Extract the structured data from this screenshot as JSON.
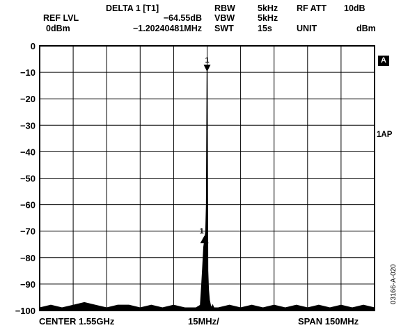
{
  "header": {
    "delta_label": "DELTA 1 [T1]",
    "delta_level": "−64.55dB",
    "delta_freq": "−1.20240481MHz",
    "ref_lvl_label": "REF LVL",
    "ref_lvl_value": "0dBm",
    "rbw_label": "RBW",
    "rbw_value": "5kHz",
    "vbw_label": "VBW",
    "vbw_value": "5kHz",
    "swt_label": "SWT",
    "swt_value": "15s",
    "rf_att_label": "RF ATT",
    "rf_att_value": "10dB",
    "unit_label": "UNIT",
    "unit_value": "dBm"
  },
  "side": {
    "trace_tag": "A",
    "detector": "1AP",
    "figure_id": "03166-A-020"
  },
  "footer": {
    "center": "CENTER 1.55GHz",
    "div": "15MHz/",
    "span": "SPAN 150MHz"
  },
  "markers": [
    {
      "label": "1",
      "x": 1550.0,
      "y": -10,
      "symbol": "down-triangle"
    },
    {
      "label": "1",
      "x": 1548.8,
      "y": -73,
      "symbol": "up-triangle"
    }
  ],
  "chart_data": {
    "type": "line",
    "title": "",
    "xlabel": "",
    "ylabel": "",
    "x_unit": "MHz",
    "y_unit": "dBm",
    "xlim": [
      1475,
      1625
    ],
    "ylim": [
      -100,
      0
    ],
    "yticks": [
      0,
      -10,
      -20,
      -30,
      -40,
      -50,
      -60,
      -70,
      -80,
      -90,
      -100
    ],
    "grid": true,
    "series": [
      {
        "x": [
          1475,
          1480,
          1485,
          1490,
          1495,
          1500,
          1505,
          1510,
          1515,
          1520,
          1525,
          1530,
          1535,
          1540,
          1545,
          1547.0,
          1547.6,
          1548.0,
          1548.5,
          1549.0,
          1549.4,
          1549.7,
          1550.0,
          1550.3,
          1550.6,
          1551.0,
          1551.5,
          1552.0,
          1552.5,
          1553.0,
          1555,
          1560,
          1565,
          1570,
          1575,
          1580,
          1585,
          1590,
          1595,
          1600,
          1605,
          1610,
          1615,
          1620,
          1625
        ],
        "values": [
          -99,
          -98,
          -99,
          -98,
          -97,
          -98,
          -99,
          -98,
          -98,
          -99,
          -98,
          -99,
          -98,
          -99,
          -99,
          -98,
          -90,
          -84,
          -76,
          -73,
          -70,
          -60,
          -9,
          -85,
          -92,
          -96,
          -98,
          -99,
          -98,
          -99,
          -99,
          -98,
          -99,
          -98,
          -99,
          -98,
          -99,
          -98,
          -99,
          -98,
          -99,
          -98,
          -99,
          -98,
          -99
        ]
      }
    ]
  }
}
